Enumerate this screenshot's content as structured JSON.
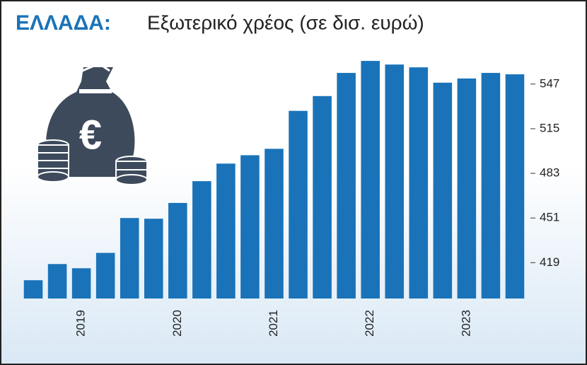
{
  "chart_data": {
    "type": "bar",
    "title": "ΕΛΛΑΔΑ:",
    "subtitle": "Εξωτερικό χρέος (σε δισ. ευρώ)",
    "categories": [
      null,
      null,
      "2019",
      null,
      null,
      null,
      "2020",
      null,
      null,
      null,
      "2021",
      null,
      null,
      null,
      "2022",
      null,
      null,
      null,
      "2023",
      null,
      null
    ],
    "values": [
      406.4,
      418,
      415,
      426,
      451,
      450.5,
      461.8,
      477.4,
      490,
      496,
      500.6,
      527.8,
      538.4,
      555,
      563.6,
      561,
      559,
      548,
      551,
      555,
      554
    ],
    "color": "#1a73b8",
    "ylim": [
      393.3,
      566.7
    ],
    "yticks": [
      419,
      451,
      483,
      515,
      547
    ],
    "grid": false
  }
}
